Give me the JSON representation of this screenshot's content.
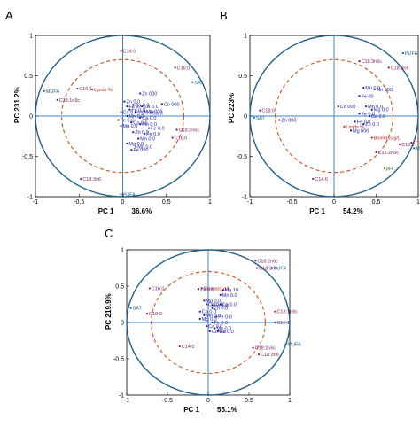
{
  "colors": {
    "frame": "#000000",
    "outer_circle": "#1f5f8b",
    "inner_circle": "#c8501e",
    "axis_line": "#3c87c6",
    "fa_label": "#7a1f5c",
    "element_label": "#1a1a9e",
    "sum_label": "#1f5f8b",
    "extra_label": "#c0272d",
    "ph_label": "#2e7d32"
  },
  "chart_data": [
    {
      "type": "scatter",
      "panel": "A",
      "xlabel": "PC 1",
      "ylabel": "PC 2",
      "x_variance": "36.6%",
      "y_variance": "31.2%",
      "xlim": [
        -1,
        1
      ],
      "ylim": [
        -1,
        1
      ],
      "xticks": [
        "-1",
        "-0.5",
        "0",
        "0.5",
        "1"
      ],
      "yticks": [
        "-1",
        "-0.5",
        "0",
        "0.5",
        "1"
      ],
      "outer_radius": 1.0,
      "inner_radius": 0.7,
      "grid": false,
      "points": [
        {
          "label": "C14:0",
          "x": -0.02,
          "y": 0.81,
          "kind": "fa"
        },
        {
          "label": "C16:0",
          "x": 0.6,
          "y": 0.6,
          "kind": "fa"
        },
        {
          "label": "SAT",
          "x": 0.8,
          "y": 0.42,
          "kind": "sum"
        },
        {
          "label": "MUFA",
          "x": -0.9,
          "y": 0.31,
          "kind": "sum"
        },
        {
          "label": "C16:1",
          "x": -0.52,
          "y": 0.34,
          "kind": "fa"
        },
        {
          "label": "Lipids %",
          "x": -0.35,
          "y": 0.33,
          "kind": "extra"
        },
        {
          "label": "C18:1n9c",
          "x": -0.75,
          "y": 0.2,
          "kind": "fa"
        },
        {
          "label": "Zn 000",
          "x": 0.2,
          "y": 0.28,
          "kind": "el"
        },
        {
          "label": "Co 000",
          "x": 0.45,
          "y": 0.15,
          "kind": "el"
        },
        {
          "label": "Zn 0.0",
          "x": 0.02,
          "y": 0.18,
          "kind": "el"
        },
        {
          "label": "Fe 0",
          "x": 0.05,
          "y": 0.12,
          "kind": "el"
        },
        {
          "label": "Ca 0.0",
          "x": 0.12,
          "y": 0.14,
          "kind": "el"
        },
        {
          "label": "Ca 0.1",
          "x": 0.22,
          "y": 0.12,
          "kind": "el"
        },
        {
          "label": "Fe 0.0",
          "x": 0.08,
          "y": 0.08,
          "kind": "el"
        },
        {
          "label": "Mg 0.0",
          "x": 0.15,
          "y": 0.05,
          "kind": "el"
        },
        {
          "label": "Co 0.0",
          "x": -0.02,
          "y": 0.05,
          "kind": "el"
        },
        {
          "label": "Mn 000",
          "x": 0.25,
          "y": 0.06,
          "kind": "el"
        },
        {
          "label": "Ca 0",
          "x": 0.32,
          "y": 0.04,
          "kind": "el"
        },
        {
          "label": "Mn 0.0",
          "x": 0.05,
          "y": 0.0,
          "kind": "el"
        },
        {
          "label": "Ca 0.0",
          "x": 0.2,
          "y": -0.02,
          "kind": "el"
        },
        {
          "label": "Fe 0.0",
          "x": -0.05,
          "y": -0.05,
          "kind": "el"
        },
        {
          "label": "Co 0.0",
          "x": 0.1,
          "y": -0.08,
          "kind": "el"
        },
        {
          "label": "Mn 0.0",
          "x": 0.2,
          "y": -0.1,
          "kind": "el"
        },
        {
          "label": "Mg 0.0",
          "x": -0.02,
          "y": -0.12,
          "kind": "el"
        },
        {
          "label": "Fe 0.0",
          "x": 0.3,
          "y": -0.15,
          "kind": "el"
        },
        {
          "label": "Zn 0.9",
          "x": 0.12,
          "y": -0.2,
          "kind": "el"
        },
        {
          "label": "Fe 0.0",
          "x": 0.25,
          "y": -0.22,
          "kind": "el"
        },
        {
          "label": "Mn 0.0",
          "x": 0.18,
          "y": -0.28,
          "kind": "el"
        },
        {
          "label": "Mg 0.0",
          "x": 0.05,
          "y": -0.34,
          "kind": "el"
        },
        {
          "label": "Mn 0.0",
          "x": 0.15,
          "y": -0.38,
          "kind": "el"
        },
        {
          "label": "Fe 000",
          "x": 0.1,
          "y": -0.42,
          "kind": "el"
        },
        {
          "label": "C18:2n6c",
          "x": 0.62,
          "y": -0.17,
          "kind": "fa"
        },
        {
          "label": "C16:0",
          "x": 0.57,
          "y": -0.27,
          "kind": "fa"
        },
        {
          "label": "C18:3n6",
          "x": -0.48,
          "y": -0.78,
          "kind": "fa"
        },
        {
          "label": "PUFA",
          "x": -0.02,
          "y": -0.97,
          "kind": "sum"
        }
      ]
    },
    {
      "type": "scatter",
      "panel": "B",
      "xlabel": "PC 1",
      "ylabel": "PC 2",
      "x_variance": "54.2%",
      "y_variance": "23%",
      "xlim": [
        -1,
        1
      ],
      "ylim": [
        -1,
        1
      ],
      "xticks": [
        "-1",
        "-0.5",
        "0",
        "0.5",
        "1"
      ],
      "yticks": [
        "-1",
        "-0.5",
        "0",
        "0.5",
        "1"
      ],
      "outer_radius": 1.0,
      "inner_radius": 0.7,
      "grid": false,
      "points": [
        {
          "label": "PUFA",
          "x": 0.82,
          "y": 0.78,
          "kind": "sum"
        },
        {
          "label": "C18:3n6c",
          "x": 0.3,
          "y": 0.68,
          "kind": "fa"
        },
        {
          "label": "C18:3n6",
          "x": 0.65,
          "y": 0.6,
          "kind": "fa"
        },
        {
          "label": "Mn 0.0",
          "x": 0.35,
          "y": 0.35,
          "kind": "el"
        },
        {
          "label": "Mn 000",
          "x": 0.48,
          "y": 0.33,
          "kind": "el"
        },
        {
          "label": "Fe 00",
          "x": 0.3,
          "y": 0.25,
          "kind": "el"
        },
        {
          "label": "Co 000",
          "x": 0.05,
          "y": 0.12,
          "kind": "el"
        },
        {
          "label": "Mn 0.0",
          "x": 0.38,
          "y": 0.12,
          "kind": "el"
        },
        {
          "label": "Mg 0.0",
          "x": 0.45,
          "y": 0.08,
          "kind": "el"
        },
        {
          "label": "Fe 0.0",
          "x": 0.3,
          "y": 0.03,
          "kind": "el"
        },
        {
          "label": "Ca 0.0",
          "x": 0.42,
          "y": 0.0,
          "kind": "el"
        },
        {
          "label": "C18:0",
          "x": -0.88,
          "y": 0.07,
          "kind": "fa"
        },
        {
          "label": "SAT",
          "x": -0.95,
          "y": -0.02,
          "kind": "sum"
        },
        {
          "label": "Zn 000",
          "x": -0.65,
          "y": -0.05,
          "kind": "el"
        },
        {
          "label": "Fe 0.0",
          "x": 0.25,
          "y": -0.07,
          "kind": "el"
        },
        {
          "label": "Zn 0.0",
          "x": 0.35,
          "y": -0.1,
          "kind": "el"
        },
        {
          "label": "Lipids %",
          "x": 0.12,
          "y": -0.13,
          "kind": "extra"
        },
        {
          "label": "Mg 000",
          "x": 0.2,
          "y": -0.18,
          "kind": "el"
        },
        {
          "label": "Biomass g/L",
          "x": 0.45,
          "y": -0.27,
          "kind": "extra"
        },
        {
          "label": "C16:1",
          "x": 0.78,
          "y": -0.35,
          "kind": "fa"
        },
        {
          "label": "C18:1n9c",
          "x": 0.92,
          "y": -0.33,
          "kind": "fa"
        },
        {
          "label": "MUFA",
          "x": 0.95,
          "y": -0.4,
          "kind": "sum"
        },
        {
          "label": "C18:2n6c",
          "x": 0.5,
          "y": -0.45,
          "kind": "fa"
        },
        {
          "label": "pH",
          "x": 0.6,
          "y": -0.65,
          "kind": "ph"
        },
        {
          "label": "C14:0",
          "x": -0.25,
          "y": -0.78,
          "kind": "fa"
        }
      ]
    },
    {
      "type": "scatter",
      "panel": "C",
      "xlabel": "PC 1",
      "ylabel": "PC 2",
      "x_variance": "55.1%",
      "y_variance": "19.9%",
      "xlim": [
        -1,
        1
      ],
      "ylim": [
        -1,
        1
      ],
      "xticks": [
        "-1",
        "-0.5",
        "0",
        "0.5",
        "1"
      ],
      "yticks": [
        "-1",
        "-0.5",
        "0",
        "0.5",
        "1"
      ],
      "outer_radius": 1.0,
      "inner_radius": 0.7,
      "grid": false,
      "points": [
        {
          "label": "C18:2n6c",
          "x": 0.58,
          "y": 0.85,
          "kind": "fa"
        },
        {
          "label": "C18:3n6",
          "x": 0.6,
          "y": 0.75,
          "kind": "fa"
        },
        {
          "label": "PUFA",
          "x": 0.78,
          "y": 0.75,
          "kind": "sum"
        },
        {
          "label": "C16:0",
          "x": -0.72,
          "y": 0.47,
          "kind": "fa"
        },
        {
          "label": "Biomass g/L",
          "x": -0.08,
          "y": 0.47,
          "kind": "extra"
        },
        {
          "label": "Zn 0.0",
          "x": -0.12,
          "y": 0.46,
          "kind": "el"
        },
        {
          "label": "Mg 10",
          "x": 0.18,
          "y": 0.45,
          "kind": "el"
        },
        {
          "label": "Mn 0.0",
          "x": 0.15,
          "y": 0.38,
          "kind": "el"
        },
        {
          "label": "Mg 0.0",
          "x": -0.05,
          "y": 0.3,
          "kind": "el"
        },
        {
          "label": "Co 0.0",
          "x": -0.02,
          "y": 0.25,
          "kind": "el"
        },
        {
          "label": "Fe 0.0",
          "x": 0.05,
          "y": 0.24,
          "kind": "el"
        },
        {
          "label": "Ca 0.0",
          "x": 0.15,
          "y": 0.25,
          "kind": "el"
        },
        {
          "label": "Zn 0.0",
          "x": 0.05,
          "y": 0.2,
          "kind": "el"
        },
        {
          "label": "SAT",
          "x": -0.95,
          "y": 0.2,
          "kind": "sum"
        },
        {
          "label": "Co 0.0",
          "x": -0.1,
          "y": 0.15,
          "kind": "el"
        },
        {
          "label": "C18:0",
          "x": -0.75,
          "y": 0.12,
          "kind": "fa"
        },
        {
          "label": "Mn 0.0",
          "x": -0.05,
          "y": 0.1,
          "kind": "el"
        },
        {
          "label": "Fe 0.0",
          "x": 0.1,
          "y": 0.08,
          "kind": "el"
        },
        {
          "label": "Mg 0.0",
          "x": -0.1,
          "y": 0.05,
          "kind": "el"
        },
        {
          "label": "Fe 0.0",
          "x": 0.05,
          "y": 0.0,
          "kind": "el"
        },
        {
          "label": "Ca 0.0",
          "x": -0.02,
          "y": -0.05,
          "kind": "el"
        },
        {
          "label": "Mn 0.0",
          "x": 0.08,
          "y": -0.08,
          "kind": "el"
        },
        {
          "label": "Co 0.0",
          "x": 0.02,
          "y": -0.12,
          "kind": "el"
        },
        {
          "label": "Fe 0.0",
          "x": 0.12,
          "y": -0.12,
          "kind": "el"
        },
        {
          "label": "C18:1n9c",
          "x": 0.82,
          "y": 0.15,
          "kind": "fa"
        },
        {
          "label": "C16:1",
          "x": 0.82,
          "y": 0.0,
          "kind": "fa"
        },
        {
          "label": "MUFA",
          "x": 0.95,
          "y": -0.3,
          "kind": "sum"
        },
        {
          "label": "C14:0",
          "x": -0.35,
          "y": -0.33,
          "kind": "fa"
        },
        {
          "label": "C18:2n6c",
          "x": 0.55,
          "y": -0.35,
          "kind": "fa"
        },
        {
          "label": "C18:3n6",
          "x": 0.62,
          "y": -0.44,
          "kind": "fa"
        }
      ]
    }
  ]
}
